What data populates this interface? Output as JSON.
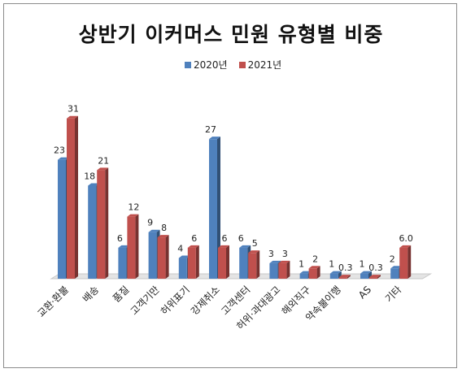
{
  "chart_data": {
    "type": "bar",
    "title": "상반기 이커머스 민원 유형별 비중",
    "categories": [
      "교환·환불",
      "배송",
      "품질",
      "고객기만",
      "허위표기",
      "강제취소",
      "고객센터",
      "허위·과대광고",
      "해외직구",
      "약속불이행",
      "AS",
      "기타"
    ],
    "series": [
      {
        "name": "2020년",
        "color": "#4f81bd",
        "values": [
          23,
          18,
          6,
          9,
          4,
          27,
          6,
          3,
          1,
          1,
          1,
          2
        ],
        "labels": [
          "23",
          "18",
          "6",
          "9",
          "4",
          "27",
          "6",
          "3",
          "1",
          "1",
          "1",
          "2"
        ]
      },
      {
        "name": "2021년",
        "color": "#c0504d",
        "values": [
          31,
          21,
          12,
          8,
          6,
          6,
          5,
          3,
          2,
          0.3,
          0.3,
          6.0
        ],
        "labels": [
          "31",
          "21",
          "12",
          "8",
          "6",
          "6",
          "5",
          "3",
          "2",
          "0.3",
          "0.3",
          "6.0"
        ]
      }
    ],
    "ylim": [
      0,
      33
    ],
    "grid": false,
    "legend": "top"
  }
}
